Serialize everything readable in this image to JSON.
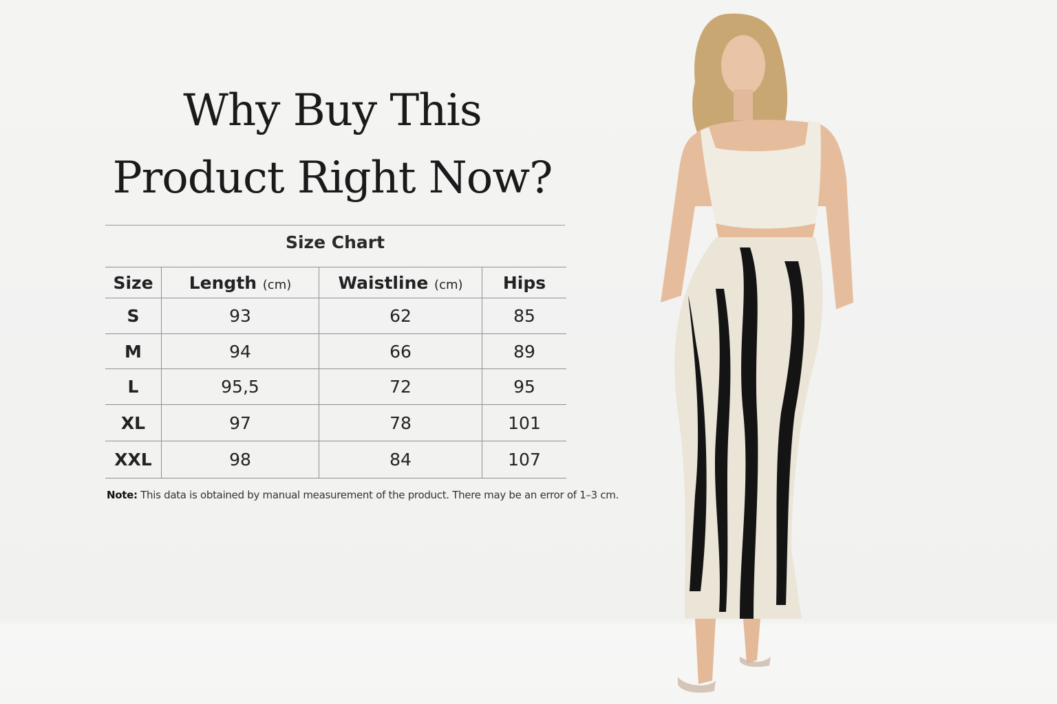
{
  "headline": {
    "line1": "Why Buy This",
    "line2": "Product Right Now?"
  },
  "size_chart": {
    "title": "Size Chart",
    "columns": [
      {
        "label": "Size",
        "unit": ""
      },
      {
        "label": "Length",
        "unit": "(cm)"
      },
      {
        "label": "Waistline",
        "unit": "(cm)"
      },
      {
        "label": "Hips",
        "unit": ""
      }
    ],
    "rows": [
      [
        "S",
        "93",
        "62",
        "85"
      ],
      [
        "M",
        "94",
        "66",
        "89"
      ],
      [
        "L",
        "95,5",
        "72",
        "95"
      ],
      [
        "XL",
        "97",
        "78",
        "101"
      ],
      [
        "XXL",
        "98",
        "84",
        "107"
      ]
    ],
    "note_label": "Note:",
    "note_text": " This data is obtained by manual measurement of the product. There may be an error of 1–3 cm."
  },
  "colors": {
    "background": "#f3f3f2",
    "text": "#1d1d1d",
    "rule": "#9a9a9a",
    "skirt_base": "#ebe5d8",
    "skirt_stripe": "#141414",
    "top": "#f0ece2"
  }
}
